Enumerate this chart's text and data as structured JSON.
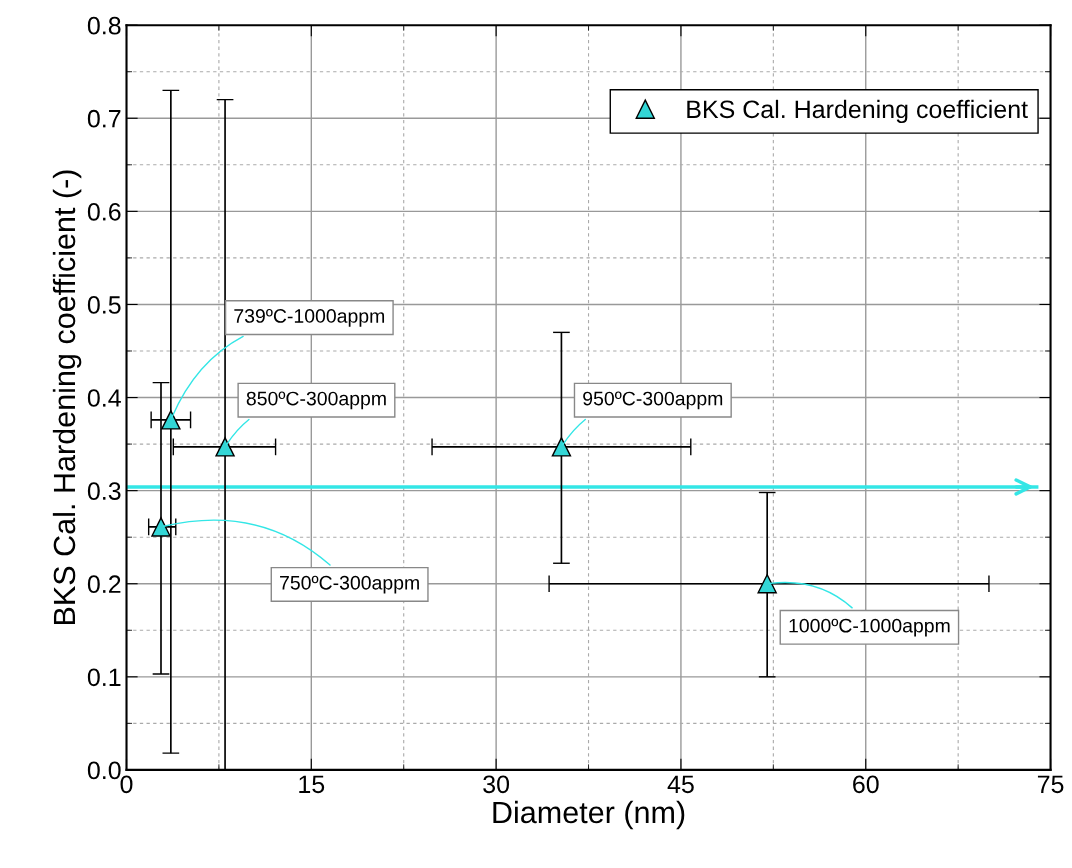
{
  "chart_data": {
    "type": "scatter",
    "xlabel": "Diameter (nm)",
    "ylabel": "BKS Cal. Hardening coefficient (-)",
    "x": [
      3.6,
      2.8,
      8.0,
      35.3,
      52.0
    ],
    "series": [
      {
        "name": "BKS Cal. Hardening coefficient",
        "color": "#33d6d6",
        "values": [
          0.376,
          0.261,
          0.347,
          0.347,
          0.2
        ],
        "errors": [
          [
            0.018,
            0.73
          ],
          [
            0.103,
            0.416
          ],
          [
            0.0,
            0.72
          ],
          [
            0.222,
            0.47
          ],
          [
            0.1,
            0.298
          ]
        ],
        "xerrors": [
          [
            2.0,
            5.2
          ],
          [
            1.8,
            4.0
          ],
          [
            3.8,
            12.1
          ],
          [
            24.8,
            45.8
          ],
          [
            34.3,
            70.0
          ]
        ]
      }
    ],
    "annotations": [
      {
        "text": "739ºC-1000appm",
        "x": 3.6,
        "y": 0.376
      },
      {
        "text": "750ºC-300appm",
        "x": 2.8,
        "y": 0.261
      },
      {
        "text": "850ºC-300appm",
        "x": 8.0,
        "y": 0.347
      },
      {
        "text": "950ºC-300appm",
        "x": 35.3,
        "y": 0.347
      },
      {
        "text": "1000ºC-1000appm",
        "x": 52.0,
        "y": 0.2
      }
    ],
    "ref_lines": [
      {
        "axis": "y",
        "value": 0.304,
        "color": "#33e6e6",
        "line_style": "solid"
      }
    ],
    "xlim": [
      0,
      75
    ],
    "xticks": [
      0,
      15,
      30,
      45,
      60,
      75
    ],
    "ylim": [
      0,
      0.8
    ],
    "yticks": [
      {
        "value": 0,
        "label": "0.0"
      },
      0.1,
      0.2,
      0.3,
      0.4,
      0.5,
      0.6,
      0.7,
      0.8
    ],
    "grid": true,
    "legend": "top right",
    "marker": "triangle"
  }
}
